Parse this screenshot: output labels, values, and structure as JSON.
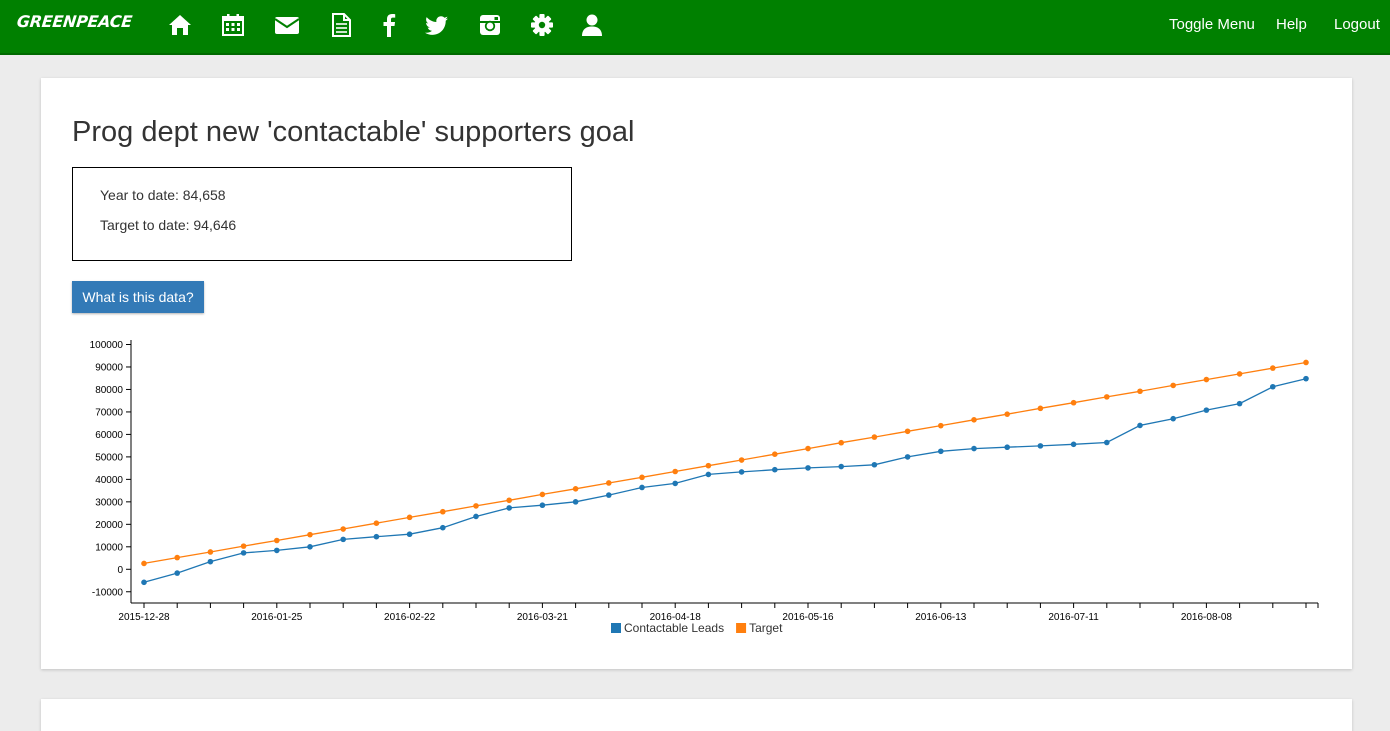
{
  "navbar": {
    "brand": "GREENPEACE",
    "icons": [
      "home-icon",
      "calendar-icon",
      "envelope-icon",
      "document-icon",
      "facebook-icon",
      "twitter-icon",
      "instagram-icon",
      "gear-icon",
      "user-icon"
    ],
    "links": [
      "Toggle Menu",
      "Help",
      "Logout"
    ]
  },
  "main": {
    "title": "Prog dept new 'contactable' supporters goal",
    "stats": {
      "year_to_date": "Year to date: 84,658",
      "target_to_date": "Target to date: 94,646"
    },
    "info_button": "What is this data?"
  },
  "colors": {
    "navbar": "#008000",
    "button": "#337ab7",
    "series_leads": "#1f77b4",
    "series_target": "#ff7f0e"
  },
  "chart_data": {
    "type": "line",
    "x_labels": [
      "2015-12-28",
      "2016-01-25",
      "2016-02-22",
      "2016-03-21",
      "2016-04-18",
      "2016-05-16",
      "2016-06-13",
      "2016-07-11",
      "2016-08-08"
    ],
    "x_label_every": 4,
    "y_ticks": [
      -10000,
      0,
      10000,
      20000,
      30000,
      40000,
      50000,
      60000,
      70000,
      80000,
      90000,
      100000
    ],
    "ylim": [
      -15000,
      102000
    ],
    "legend_position": "bottom-center",
    "series": [
      {
        "name": "Contactable Leads",
        "color": "#1f77b4",
        "values": [
          -5800,
          -1700,
          3400,
          7300,
          8400,
          10000,
          13300,
          14500,
          15600,
          18500,
          23500,
          27300,
          28500,
          30000,
          33000,
          36400,
          38200,
          42200,
          43300,
          44300,
          45100,
          45700,
          46500,
          50000,
          52500,
          53700,
          54300,
          54900,
          55600,
          56400,
          64000,
          67000,
          70800,
          73700,
          81200,
          84800
        ]
      },
      {
        "name": "Target",
        "color": "#ff7f0e",
        "values": [
          2600,
          5200,
          7700,
          10300,
          12800,
          15400,
          17900,
          20500,
          23100,
          25600,
          28200,
          30700,
          33300,
          35800,
          38400,
          40900,
          43500,
          46100,
          48600,
          51200,
          53700,
          56300,
          58800,
          61400,
          63900,
          66500,
          69000,
          71600,
          74100,
          76700,
          79200,
          81800,
          84400,
          86900,
          89500,
          92000
        ]
      }
    ]
  }
}
